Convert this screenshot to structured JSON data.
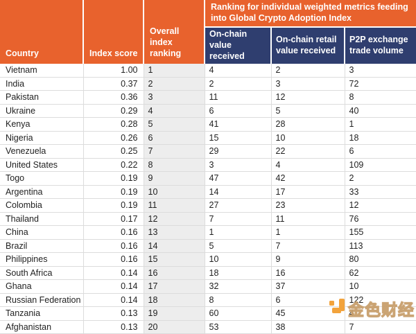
{
  "chart_data": {
    "type": "table",
    "group_header": "Ranking for individual weighted metrics feeding into Global Crypto Adoption Index",
    "columns": [
      "Country",
      "Index score",
      "Overall index ranking",
      "On-chain value received",
      "On-chain retail value received",
      "P2P exchange trade volume"
    ],
    "rows": [
      [
        "Vietnam",
        "1.00",
        "1",
        "4",
        "2",
        "3"
      ],
      [
        "India",
        "0.37",
        "2",
        "2",
        "3",
        "72"
      ],
      [
        "Pakistan",
        "0.36",
        "3",
        "11",
        "12",
        "8"
      ],
      [
        "Ukraine",
        "0.29",
        "4",
        "6",
        "5",
        "40"
      ],
      [
        "Kenya",
        "0.28",
        "5",
        "41",
        "28",
        "1"
      ],
      [
        "Nigeria",
        "0.26",
        "6",
        "15",
        "10",
        "18"
      ],
      [
        "Venezuela",
        "0.25",
        "7",
        "29",
        "22",
        "6"
      ],
      [
        "United States",
        "0.22",
        "8",
        "3",
        "4",
        "109"
      ],
      [
        "Togo",
        "0.19",
        "9",
        "47",
        "42",
        "2"
      ],
      [
        "Argentina",
        "0.19",
        "10",
        "14",
        "17",
        "33"
      ],
      [
        "Colombia",
        "0.19",
        "11",
        "27",
        "23",
        "12"
      ],
      [
        "Thailand",
        "0.17",
        "12",
        "7",
        "11",
        "76"
      ],
      [
        "China",
        "0.16",
        "13",
        "1",
        "1",
        "155"
      ],
      [
        "Brazil",
        "0.16",
        "14",
        "5",
        "7",
        "113"
      ],
      [
        "Philippines",
        "0.16",
        "15",
        "10",
        "9",
        "80"
      ],
      [
        "South Africa",
        "0.14",
        "16",
        "18",
        "16",
        "62"
      ],
      [
        "Ghana",
        "0.14",
        "17",
        "32",
        "37",
        "10"
      ],
      [
        "Russian Federation",
        "0.14",
        "18",
        "8",
        "6",
        "122"
      ],
      [
        "Tanzania",
        "0.13",
        "19",
        "60",
        "45",
        "4"
      ],
      [
        "Afghanistan",
        "0.13",
        "20",
        "53",
        "38",
        "7"
      ]
    ]
  },
  "watermark": {
    "text": "金色财经"
  },
  "colors": {
    "header_orange": "#E8622D",
    "header_navy": "#2F3E6F",
    "rank_column_bg": "#EDEDED",
    "watermark_gold": "#F2A33C"
  }
}
